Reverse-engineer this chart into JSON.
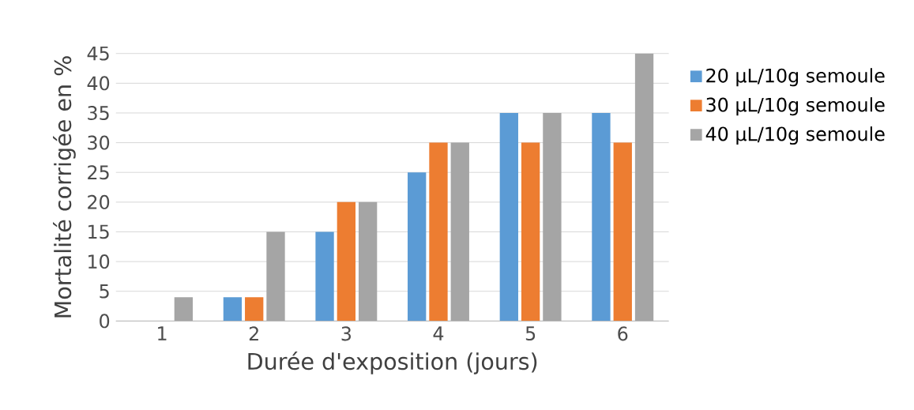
{
  "chart_data": {
    "type": "bar",
    "xlabel": "Durée d'exposition (jours)",
    "ylabel": "Mortalité corrigée en %",
    "categories": [
      "1",
      "2",
      "3",
      "4",
      "5",
      "6"
    ],
    "series": [
      {
        "name": "20 µL/10g semoule",
        "color": "#5b9bd5",
        "values": [
          0,
          4,
          15,
          25,
          35,
          35
        ]
      },
      {
        "name": "30 µL/10g semoule",
        "color": "#ed7d31",
        "values": [
          0,
          4,
          20,
          30,
          30,
          30
        ]
      },
      {
        "name": "40 µL/10g semoule",
        "color": "#a5a5a5",
        "values": [
          4,
          15,
          20,
          30,
          35,
          45
        ]
      }
    ],
    "ylim": [
      0,
      45
    ],
    "yticks": [
      0,
      5,
      10,
      15,
      20,
      25,
      30,
      35,
      40,
      45
    ],
    "grid": "y",
    "legend": "right"
  }
}
